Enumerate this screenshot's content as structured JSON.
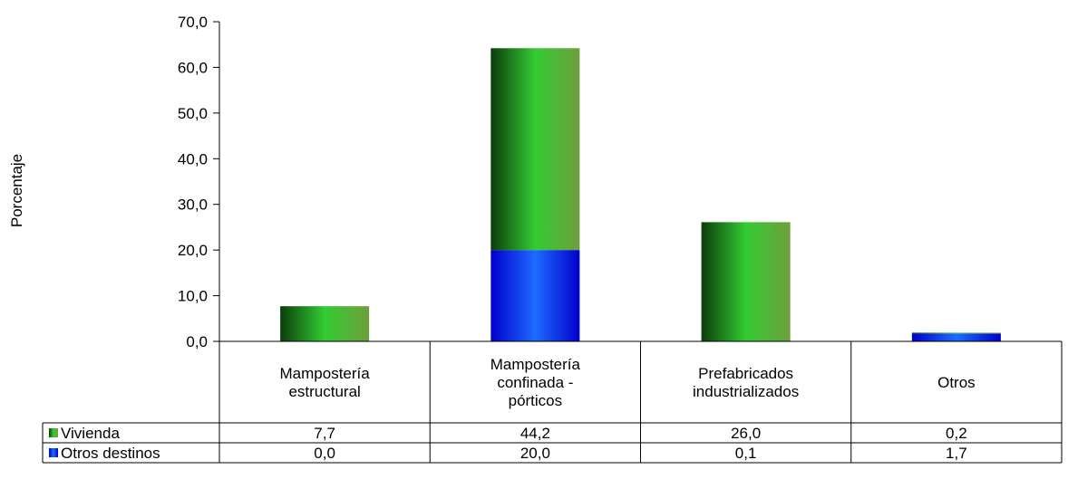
{
  "chart_data": {
    "type": "bar",
    "stacked": true,
    "title": "",
    "xlabel": "",
    "ylabel": "Porcentaje",
    "ylim": [
      0,
      70
    ],
    "yticks": [
      "0,0",
      "10,0",
      "20,0",
      "30,0",
      "40,0",
      "50,0",
      "60,0",
      "70,0"
    ],
    "ytick_values": [
      0,
      10,
      20,
      30,
      40,
      50,
      60,
      70
    ],
    "categories": [
      [
        "Mampostería",
        "estructural"
      ],
      [
        "Mampostería",
        "confinada -",
        "pórticos"
      ],
      [
        "Prefabricados",
        "industrializados"
      ],
      [
        "Otros"
      ]
    ],
    "series": [
      {
        "name": "Otros destinos",
        "values": [
          0.0,
          20.0,
          0.1,
          1.7
        ],
        "labels": [
          "0,0",
          "20,0",
          "0,1",
          "1,7"
        ],
        "color": "#0000ff"
      },
      {
        "name": "Vivienda",
        "values": [
          7.7,
          44.2,
          26.0,
          0.2
        ],
        "labels": [
          "7,7",
          "44,2",
          "26,0",
          "0,2"
        ],
        "color": "#33cc33"
      }
    ],
    "table_rows": [
      "Vivienda",
      "Otros destinos"
    ],
    "grid": false,
    "legend": "data-table"
  }
}
